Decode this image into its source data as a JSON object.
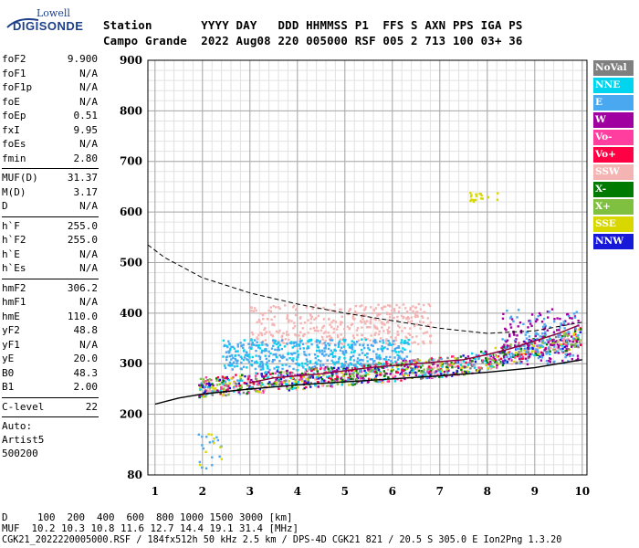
{
  "logo": {
    "top": "Lowell",
    "main": "DIGISONDE"
  },
  "header": {
    "line1": "Station       YYYY DAY   DDD HHMMSS P1  FFS S AXN PPS IGA PS",
    "line2": "Campo Grande  2022 Aug08 220 005000 RSF 005 2 713 100 03+ 36"
  },
  "params_group1": [
    {
      "name": "foF2",
      "value": "9.900"
    },
    {
      "name": "foF1",
      "value": "N/A"
    },
    {
      "name": "foF1p",
      "value": "N/A"
    },
    {
      "name": "foE",
      "value": "N/A"
    },
    {
      "name": "foEp",
      "value": "0.51"
    },
    {
      "name": "fxI",
      "value": "9.95"
    },
    {
      "name": "foEs",
      "value": "N/A"
    },
    {
      "name": "fmin",
      "value": "2.80"
    }
  ],
  "params_group2": [
    {
      "name": "MUF(D)",
      "value": "31.37"
    },
    {
      "name": "M(D)",
      "value": "3.17"
    },
    {
      "name": "D",
      "value": "N/A"
    }
  ],
  "params_group3": [
    {
      "name": "h`F",
      "value": "255.0"
    },
    {
      "name": "h`F2",
      "value": "255.0"
    },
    {
      "name": "h`E",
      "value": "N/A"
    },
    {
      "name": "h`Es",
      "value": "N/A"
    }
  ],
  "params_group4": [
    {
      "name": "hmF2",
      "value": "306.2"
    },
    {
      "name": "hmF1",
      "value": "N/A"
    },
    {
      "name": "hmE",
      "value": "110.0"
    },
    {
      "name": "yF2",
      "value": "48.8"
    },
    {
      "name": "yF1",
      "value": "N/A"
    },
    {
      "name": "yE",
      "value": "20.0"
    },
    {
      "name": "B0",
      "value": "48.3"
    },
    {
      "name": "B1",
      "value": "2.00"
    }
  ],
  "params_group5": [
    {
      "name": "C-level",
      "value": "22"
    }
  ],
  "autoscale": {
    "line1": "Auto:",
    "line2": "Artist5",
    "line3": "500200"
  },
  "legend": [
    {
      "label": "NoVal",
      "color": "#7f7f7f"
    },
    {
      "label": "NNE",
      "color": "#00d4ee"
    },
    {
      "label": "E",
      "color": "#4aa8f0"
    },
    {
      "label": "W",
      "color": "#a000a0"
    },
    {
      "label": "Vo-",
      "color": "#ff3ea0"
    },
    {
      "label": "Vo+",
      "color": "#ff0044"
    },
    {
      "label": "SSW",
      "color": "#f4b4b4"
    },
    {
      "label": "X-",
      "color": "#007a00"
    },
    {
      "label": "X+",
      "color": "#80c040"
    },
    {
      "label": "SSE",
      "color": "#d8d800"
    },
    {
      "label": "NNW",
      "color": "#1818d8"
    }
  ],
  "footer": {
    "line1": "D     100  200  400  600  800 1000 1500 3000 [km]",
    "line2": "MUF  10.2 10.3 10.8 11.6 12.7 14.4 19.1 31.4 [MHz]",
    "line3": "CGK21_2022220005000.RSF / 184fx512h 50 kHz 2.5 km / DPS-4D CGK21 821 / 20.5 S 305.0 E Ion2Png 1.3.20"
  },
  "chart_data": {
    "type": "scatter",
    "xlim": [
      0.85,
      10.1
    ],
    "ylim": [
      80,
      900
    ],
    "x_ticks": [
      1,
      2,
      3,
      4,
      5,
      6,
      7,
      8,
      9,
      10
    ],
    "y_ticks": [
      80,
      200,
      300,
      400,
      500,
      600,
      700,
      800,
      900
    ],
    "grid": true,
    "trace_series": [
      {
        "name": "Vo+",
        "color": "#8a0038",
        "points": [
          [
            3.0,
            262
          ],
          [
            3.5,
            272
          ],
          [
            4.0,
            276
          ],
          [
            4.5,
            280
          ],
          [
            5.0,
            286
          ],
          [
            5.5,
            292
          ],
          [
            6.0,
            296
          ],
          [
            6.5,
            300
          ],
          [
            7.0,
            304
          ],
          [
            7.5,
            308
          ],
          [
            8.0,
            318
          ],
          [
            8.5,
            330
          ],
          [
            9.0,
            345
          ],
          [
            9.5,
            360
          ],
          [
            9.9,
            375
          ]
        ]
      },
      {
        "name": "profile",
        "color": "#000000",
        "points": [
          [
            1.0,
            220
          ],
          [
            1.5,
            232
          ],
          [
            2.0,
            240
          ],
          [
            3.0,
            250
          ],
          [
            4.0,
            258
          ],
          [
            5.0,
            264
          ],
          [
            6.0,
            270
          ],
          [
            7.0,
            276
          ],
          [
            8.0,
            283
          ],
          [
            9.0,
            292
          ],
          [
            10.0,
            308
          ]
        ]
      },
      {
        "name": "upper",
        "color": "#000000",
        "dashed": true,
        "points": [
          [
            0.85,
            535
          ],
          [
            1.2,
            510
          ],
          [
            1.6,
            490
          ],
          [
            2.0,
            470
          ],
          [
            3.0,
            440
          ],
          [
            4.0,
            418
          ],
          [
            5.0,
            400
          ],
          [
            6.0,
            385
          ],
          [
            7.0,
            370
          ],
          [
            8.0,
            360
          ],
          [
            9.0,
            365
          ],
          [
            10.0,
            382
          ]
        ]
      }
    ]
  }
}
